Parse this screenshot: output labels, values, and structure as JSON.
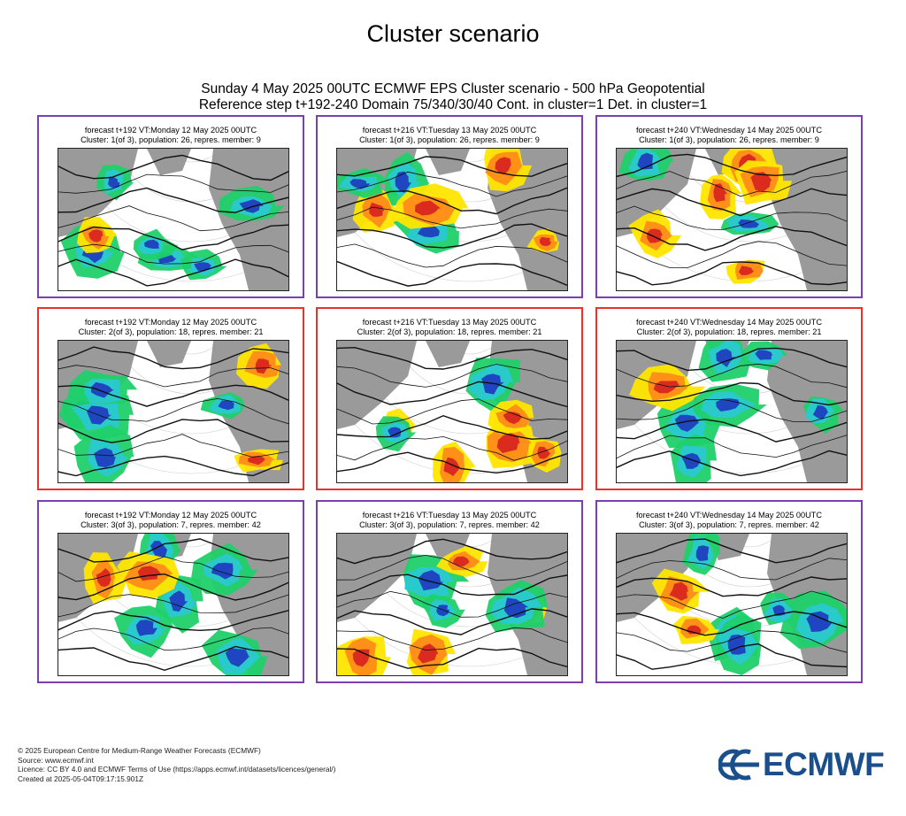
{
  "page_title": "Cluster scenario",
  "header": {
    "line1": "Sunday 4 May 2025 00UTC ECMWF EPS Cluster scenario - 500 hPa Geopotential",
    "line2": "Reference step t+192-240 Domain 75/340/30/40 Cont. in cluster=1 Det. in cluster=1"
  },
  "colors": {
    "cluster_border_default": "#7b3fb1",
    "cluster_border_highlight": "#e8322a",
    "anomaly_neg_strong": "#1f3fbf",
    "anomaly_neg_mid": "#2ac8d0",
    "anomaly_neg_weak": "#1fd06a",
    "anomaly_pos_weak": "#ffe600",
    "anomaly_pos_mid": "#ff8c1a",
    "anomaly_pos_strong": "#d9251f",
    "land": "#9a9a9a",
    "brand": "#1a4f8c"
  },
  "panels": [
    {
      "line1": "forecast t+192 VT:Monday 12 May 2025 00UTC",
      "line2": "Cluster: 1(of 3), population: 26, repres. member: 9"
    },
    {
      "line1": "forecast t+216 VT:Tuesday 13 May 2025 00UTC",
      "line2": "Cluster: 1(of 3), population: 26, repres. member: 9"
    },
    {
      "line1": "forecast t+240 VT:Wednesday 14 May 2025 00UTC",
      "line2": "Cluster: 1(of 3), population: 26, repres. member: 9"
    },
    {
      "line1": "forecast t+192 VT:Monday 12 May 2025 00UTC",
      "line2": "Cluster: 2(of 3), population: 18, repres. member: 21"
    },
    {
      "line1": "forecast t+216 VT:Tuesday 13 May 2025 00UTC",
      "line2": "Cluster: 2(of 3), population: 18, repres. member: 21"
    },
    {
      "line1": "forecast t+240 VT:Wednesday 14 May 2025 00UTC",
      "line2": "Cluster: 2(of 3), population: 18, repres. member: 21"
    },
    {
      "line1": "forecast t+192 VT:Monday 12 May 2025 00UTC",
      "line2": "Cluster: 3(of 3), population: 7, repres. member: 42"
    },
    {
      "line1": "forecast t+216 VT:Tuesday 13 May 2025 00UTC",
      "line2": "Cluster: 3(of 3), population: 7, repres. member: 42"
    },
    {
      "line1": "forecast t+240 VT:Wednesday 14 May 2025 00UTC",
      "line2": "Cluster: 3(of 3), population: 7, repres. member: 42"
    }
  ],
  "footer": {
    "copyright": "© 2025 European Centre for Medium-Range Weather Forecasts (ECMWF)",
    "source": "Source: www.ecmwf.int",
    "licence": "Licence: CC BY 4.0 and ECMWF Terms of Use (https://apps.ecmwf.int/datasets/licences/general/)",
    "created": "Created at 2025-05-04T09:17:15.901Z"
  },
  "logo": {
    "text": "ECMWF",
    "icon": "ecmwf-logo-icon"
  }
}
